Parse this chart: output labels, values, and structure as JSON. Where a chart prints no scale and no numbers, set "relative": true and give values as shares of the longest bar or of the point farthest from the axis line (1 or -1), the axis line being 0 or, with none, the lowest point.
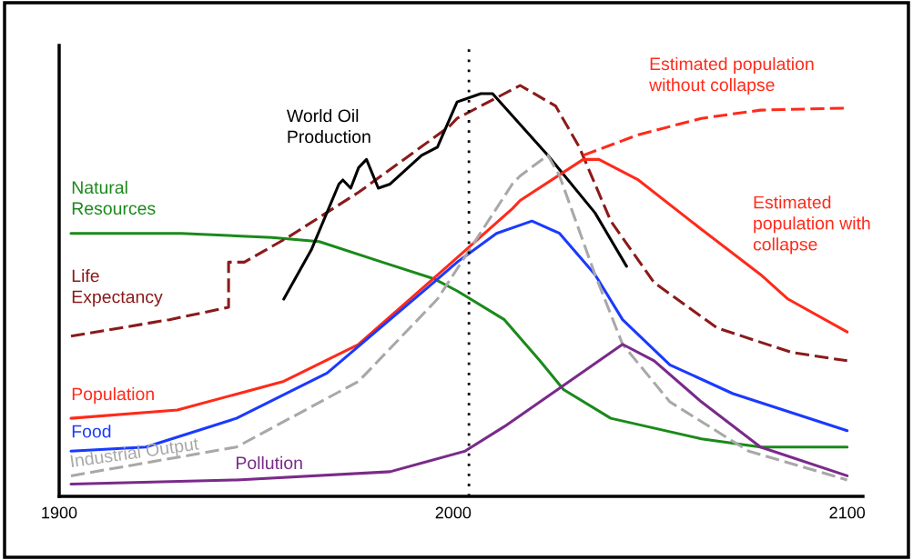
{
  "chart_data": {
    "type": "line",
    "relative": true,
    "xlim": [
      1900,
      2104
    ],
    "xticks": [
      1900,
      2000,
      2100
    ],
    "grid": false,
    "ref_lines": [
      {
        "axis": "x",
        "value": 2004,
        "color": "#000000",
        "line_style": "dotted"
      }
    ],
    "annotations": [
      "Estimated population with collapse"
    ],
    "series": [
      {
        "name": "Natural Resources",
        "color": "#1a8a1a",
        "line_style": "solid",
        "x": [
          1903,
          1931,
          1954,
          1966,
          1982,
          1995,
          2001,
          2013,
          2022,
          2028,
          2040,
          2063,
          2078,
          2100
        ],
        "values": [
          0.64,
          0.64,
          0.63,
          0.62,
          0.57,
          0.53,
          0.5,
          0.43,
          0.33,
          0.26,
          0.19,
          0.14,
          0.12,
          0.12
        ]
      },
      {
        "name": "Life Expectancy",
        "color": "#8b1a1a",
        "line_style": "dashed",
        "x": [
          1903,
          1928,
          1943,
          1943,
          1947,
          1958,
          1976,
          1999,
          2001,
          2017,
          2026,
          2032,
          2040,
          2051,
          2067,
          2086,
          2100
        ],
        "values": [
          0.39,
          0.43,
          0.46,
          0.57,
          0.57,
          0.63,
          0.74,
          0.9,
          0.92,
          1.0,
          0.95,
          0.85,
          0.67,
          0.52,
          0.41,
          0.35,
          0.33
        ]
      },
      {
        "name": "World Oil Production",
        "color": "#000000",
        "line_style": "solid",
        "x": [
          1957,
          1964,
          1971,
          1972,
          1974,
          1976,
          1978,
          1981,
          1984,
          1992,
          1996,
          2001,
          2007,
          2010,
          2024,
          2036,
          2044
        ],
        "values": [
          0.48,
          0.6,
          0.76,
          0.77,
          0.75,
          0.8,
          0.82,
          0.75,
          0.76,
          0.83,
          0.85,
          0.96,
          0.98,
          0.98,
          0.83,
          0.69,
          0.56
        ]
      },
      {
        "name": "Estimated population without collapse",
        "color": "#ff2a1a",
        "line_style": "dashed",
        "x": [
          2033,
          2047,
          2063,
          2078,
          2100
        ],
        "values": [
          0.83,
          0.88,
          0.92,
          0.94,
          0.945
        ]
      },
      {
        "name": "Population",
        "color": "#ff2a1a",
        "line_style": "solid",
        "x": [
          1903,
          1930,
          1957,
          1976,
          1995,
          2015,
          2017,
          2033,
          2037,
          2047,
          2063,
          2078,
          2085,
          2100
        ],
        "values": [
          0.19,
          0.21,
          0.28,
          0.37,
          0.53,
          0.7,
          0.72,
          0.82,
          0.82,
          0.77,
          0.65,
          0.54,
          0.48,
          0.4
        ]
      },
      {
        "name": "Food",
        "color": "#1a3aff",
        "line_style": "solid",
        "x": [
          1903,
          1922,
          1945,
          1968,
          1995,
          2001,
          2011,
          2020,
          2027,
          2036,
          2043,
          2055,
          2071,
          2100
        ],
        "values": [
          0.11,
          0.12,
          0.19,
          0.3,
          0.52,
          0.57,
          0.64,
          0.67,
          0.64,
          0.54,
          0.43,
          0.32,
          0.25,
          0.16
        ]
      },
      {
        "name": "Industrial Output",
        "color": "#a8a8a8",
        "line_style": "dashed",
        "x": [
          1903,
          1945,
          1976,
          1996,
          2015,
          2017,
          2024,
          2027,
          2036,
          2043,
          2055,
          2075,
          2100
        ],
        "values": [
          0.05,
          0.12,
          0.28,
          0.48,
          0.76,
          0.78,
          0.83,
          0.78,
          0.54,
          0.37,
          0.23,
          0.11,
          0.04
        ]
      },
      {
        "name": "Pollution",
        "color": "#7a2a8a",
        "line_style": "solid",
        "x": [
          1903,
          1945,
          1984,
          2003,
          2013,
          2028,
          2043,
          2051,
          2063,
          2078,
          2100
        ],
        "values": [
          0.03,
          0.04,
          0.06,
          0.11,
          0.17,
          0.27,
          0.37,
          0.33,
          0.23,
          0.12,
          0.05
        ]
      }
    ]
  }
}
